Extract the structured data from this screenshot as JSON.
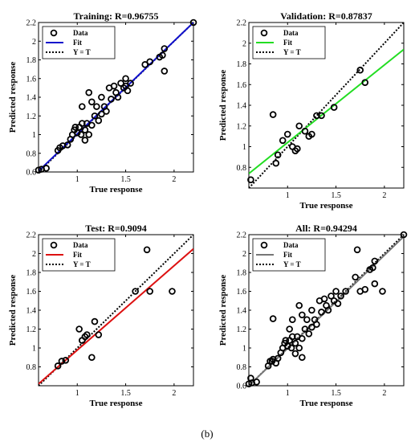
{
  "caption": "(b)",
  "chart_data": [
    {
      "type": "scatter",
      "title": "Training: R=0.96755",
      "xlabel": "True response",
      "ylabel": "Predicted response",
      "xlim": [
        0.6,
        2.2
      ],
      "ylim": [
        0.6,
        2.2
      ],
      "xticks": [
        1,
        1.5,
        2
      ],
      "xtick_labels": [
        "1",
        "1.5",
        "2"
      ],
      "yticks": [
        0.6,
        0.8,
        1,
        1.2,
        1.4,
        1.6,
        1.8,
        2,
        2.2
      ],
      "ytick_labels": [
        "0.6",
        "0.8",
        "1",
        "1.2",
        "1.4",
        "1.6",
        "1.8",
        "2",
        "2.2"
      ],
      "legend": {
        "position": "top-left",
        "entries": [
          "Data",
          "Fit",
          "Y = T"
        ]
      },
      "fit_color": "#1010cc",
      "fit_line": [
        [
          0.6,
          0.61
        ],
        [
          2.2,
          2.2
        ]
      ],
      "points": [
        [
          0.6,
          0.62
        ],
        [
          0.63,
          0.63
        ],
        [
          0.68,
          0.64
        ],
        [
          0.8,
          0.83
        ],
        [
          0.82,
          0.86
        ],
        [
          0.85,
          0.88
        ],
        [
          0.9,
          0.89
        ],
        [
          0.93,
          0.95
        ],
        [
          0.95,
          1.0
        ],
        [
          0.97,
          1.05
        ],
        [
          1.0,
          1.02
        ],
        [
          1.02,
          1.08
        ],
        [
          1.04,
          1.0
        ],
        [
          1.05,
          1.12
        ],
        [
          1.08,
          1.05
        ],
        [
          1.08,
          0.94
        ],
        [
          1.1,
          1.12
        ],
        [
          1.12,
          1.0
        ],
        [
          1.15,
          1.1
        ],
        [
          1.15,
          1.35
        ],
        [
          1.18,
          1.2
        ],
        [
          1.2,
          1.3
        ],
        [
          1.22,
          1.15
        ],
        [
          1.25,
          1.4
        ],
        [
          1.28,
          1.3
        ],
        [
          1.3,
          1.25
        ],
        [
          1.33,
          1.5
        ],
        [
          1.35,
          1.38
        ],
        [
          1.38,
          1.52
        ],
        [
          1.4,
          1.45
        ],
        [
          1.42,
          1.4
        ],
        [
          1.45,
          1.55
        ],
        [
          1.48,
          1.5
        ],
        [
          1.5,
          1.6
        ],
        [
          1.52,
          1.47
        ],
        [
          1.5,
          1.52
        ],
        [
          1.55,
          1.55
        ],
        [
          1.12,
          1.45
        ],
        [
          1.05,
          1.3
        ],
        [
          1.7,
          1.75
        ],
        [
          1.75,
          1.78
        ],
        [
          1.85,
          1.83
        ],
        [
          1.88,
          1.85
        ],
        [
          1.9,
          1.68
        ],
        [
          1.9,
          1.92
        ],
        [
          2.2,
          2.2
        ],
        [
          0.98,
          1.08
        ],
        [
          1.25,
          1.22
        ]
      ]
    },
    {
      "type": "scatter",
      "title": "Validation: R=0.87837",
      "xlabel": "True response",
      "ylabel": "Predicted response",
      "xlim": [
        0.6,
        2.2
      ],
      "ylim": [
        0.6,
        2.2
      ],
      "xticks": [
        1,
        1.5,
        2
      ],
      "xtick_labels": [
        "1",
        "1.5",
        "2"
      ],
      "yticks": [
        0.8,
        1,
        1.2,
        1.4,
        1.6,
        1.8,
        2,
        2.2
      ],
      "ytick_labels": [
        "0.8",
        "1",
        "1.2",
        "1.4",
        "1.6",
        "1.8",
        "2",
        "2.2"
      ],
      "legend": {
        "position": "top-left",
        "entries": [
          "Data",
          "Fit",
          "Y = T"
        ]
      },
      "fit_color": "#22dd22",
      "fit_line": [
        [
          0.6,
          0.74
        ],
        [
          2.2,
          1.94
        ]
      ],
      "points": [
        [
          0.62,
          0.68
        ],
        [
          0.88,
          0.84
        ],
        [
          0.9,
          0.92
        ],
        [
          0.95,
          1.06
        ],
        [
          1.0,
          1.12
        ],
        [
          1.05,
          1.0
        ],
        [
          1.08,
          0.96
        ],
        [
          1.1,
          0.98
        ],
        [
          1.12,
          1.2
        ],
        [
          1.18,
          1.15
        ],
        [
          1.22,
          1.1
        ],
        [
          1.25,
          1.12
        ],
        [
          1.3,
          1.3
        ],
        [
          1.35,
          1.3
        ],
        [
          1.48,
          1.38
        ],
        [
          1.75,
          1.74
        ],
        [
          1.8,
          1.62
        ],
        [
          0.85,
          1.31
        ]
      ]
    },
    {
      "type": "scatter",
      "title": "Test: R=0.9094",
      "xlabel": "True response",
      "ylabel": "Predicted response",
      "xlim": [
        0.6,
        2.2
      ],
      "ylim": [
        0.6,
        2.2
      ],
      "xticks": [
        1,
        1.5,
        2
      ],
      "xtick_labels": [
        "1",
        "1.5",
        "2"
      ],
      "yticks": [
        0.8,
        1,
        1.2,
        1.4,
        1.6,
        1.8,
        2,
        2.2
      ],
      "ytick_labels": [
        "0.8",
        "1",
        "1.2",
        "1.4",
        "1.6",
        "1.8",
        "2",
        "2.2"
      ],
      "legend": {
        "position": "top-left",
        "entries": [
          "Data",
          "Fit",
          "Y = T"
        ]
      },
      "fit_color": "#dd1111",
      "fit_line": [
        [
          0.6,
          0.62
        ],
        [
          2.2,
          2.05
        ]
      ],
      "points": [
        [
          0.8,
          0.81
        ],
        [
          0.84,
          0.86
        ],
        [
          0.88,
          0.87
        ],
        [
          1.02,
          1.2
        ],
        [
          1.05,
          1.08
        ],
        [
          1.08,
          1.12
        ],
        [
          1.1,
          1.14
        ],
        [
          1.15,
          0.9
        ],
        [
          1.18,
          1.28
        ],
        [
          1.22,
          1.14
        ],
        [
          1.6,
          1.6
        ],
        [
          1.72,
          2.04
        ],
        [
          1.75,
          1.6
        ],
        [
          1.98,
          1.6
        ]
      ]
    },
    {
      "type": "scatter",
      "title": "All: R=0.94294",
      "xlabel": "True response",
      "ylabel": "Predicted response",
      "xlim": [
        0.6,
        2.2
      ],
      "ylim": [
        0.6,
        2.2
      ],
      "xticks": [
        1,
        1.5,
        2
      ],
      "xtick_labels": [
        "1",
        "1.5",
        "2"
      ],
      "yticks": [
        0.6,
        0.8,
        1,
        1.2,
        1.4,
        1.6,
        1.8,
        2,
        2.2
      ],
      "ytick_labels": [
        "0.6",
        "0.8",
        "1",
        "1.2",
        "1.4",
        "1.6",
        "1.8",
        "2",
        "2.2"
      ],
      "legend": {
        "position": "top-left",
        "entries": [
          "Data",
          "Fit",
          "Y = T"
        ]
      },
      "fit_color": "#777777",
      "fit_line": [
        [
          0.6,
          0.6
        ],
        [
          2.2,
          2.18
        ]
      ],
      "points": [
        [
          0.6,
          0.62
        ],
        [
          0.63,
          0.63
        ],
        [
          0.68,
          0.64
        ],
        [
          0.62,
          0.68
        ],
        [
          0.8,
          0.81
        ],
        [
          0.82,
          0.86
        ],
        [
          0.85,
          0.88
        ],
        [
          0.84,
          0.86
        ],
        [
          0.88,
          0.84
        ],
        [
          0.9,
          0.89
        ],
        [
          0.93,
          0.95
        ],
        [
          0.95,
          1.0
        ],
        [
          0.97,
          1.05
        ],
        [
          1.0,
          1.02
        ],
        [
          1.02,
          1.08
        ],
        [
          1.02,
          1.2
        ],
        [
          1.04,
          1.0
        ],
        [
          1.05,
          1.12
        ],
        [
          1.08,
          1.05
        ],
        [
          1.08,
          0.94
        ],
        [
          1.1,
          1.12
        ],
        [
          1.12,
          1.0
        ],
        [
          1.15,
          1.1
        ],
        [
          1.15,
          0.9
        ],
        [
          1.15,
          1.35
        ],
        [
          1.18,
          1.2
        ],
        [
          1.2,
          1.3
        ],
        [
          1.22,
          1.15
        ],
        [
          1.25,
          1.4
        ],
        [
          1.28,
          1.3
        ],
        [
          1.3,
          1.25
        ],
        [
          1.33,
          1.5
        ],
        [
          1.35,
          1.38
        ],
        [
          1.38,
          1.52
        ],
        [
          1.4,
          1.45
        ],
        [
          1.42,
          1.4
        ],
        [
          1.45,
          1.55
        ],
        [
          1.48,
          1.5
        ],
        [
          1.5,
          1.6
        ],
        [
          1.52,
          1.47
        ],
        [
          1.55,
          1.55
        ],
        [
          1.12,
          1.45
        ],
        [
          1.05,
          1.3
        ],
        [
          0.85,
          1.31
        ],
        [
          1.6,
          1.6
        ],
        [
          1.7,
          1.75
        ],
        [
          1.72,
          2.04
        ],
        [
          1.75,
          1.6
        ],
        [
          1.8,
          1.62
        ],
        [
          1.85,
          1.83
        ],
        [
          1.88,
          1.85
        ],
        [
          1.9,
          1.68
        ],
        [
          1.9,
          1.92
        ],
        [
          1.98,
          1.6
        ],
        [
          2.2,
          2.2
        ],
        [
          0.98,
          1.08
        ],
        [
          1.25,
          1.22
        ]
      ]
    }
  ]
}
